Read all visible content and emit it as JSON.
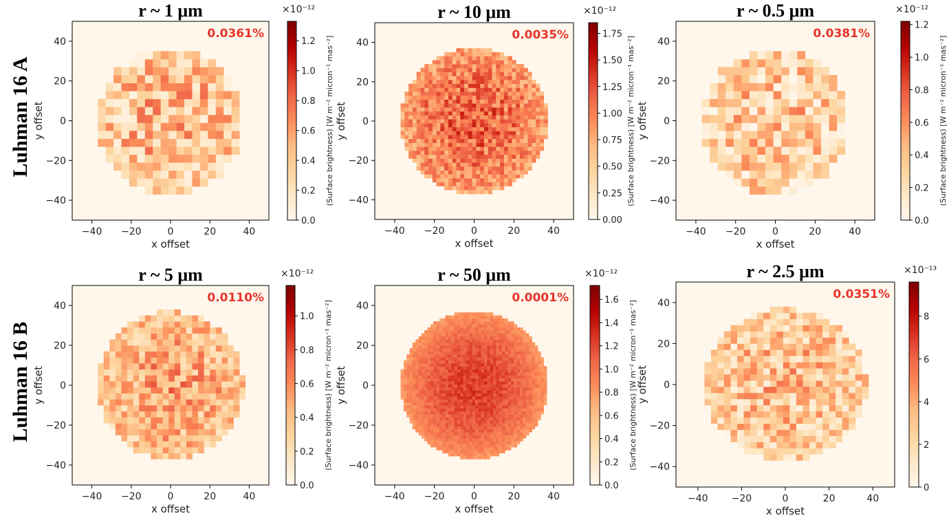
{
  "row_labels": [
    "Luhman 16 A",
    "Luhman 16 B"
  ],
  "chart_data": [
    {
      "type": "heatmap",
      "row_label": "Luhman 16 A",
      "title": "r ~ 1 μm",
      "annotation": "0.0361%",
      "xlabel": "x offset",
      "ylabel": "y offset",
      "cbar_label": "(Surface brightness) [W m⁻² micron⁻¹ mas⁻²]",
      "cbar_exponent": "×10⁻¹²",
      "cbar_ticks": [
        "0.0",
        "0.2",
        "0.4",
        "0.6",
        "0.8",
        "1.0",
        "1.2"
      ],
      "cbar_max": 1.33,
      "xlim": [
        -50,
        50
      ],
      "ylim": [
        -50,
        50
      ],
      "x_ticks": [
        "−40",
        "−20",
        "0",
        "20",
        "40"
      ],
      "y_ticks": [
        "40",
        "20",
        "0",
        "−20",
        "−40"
      ],
      "disk_radius": 37,
      "mean_level": 0.35,
      "spread": 0.3,
      "cell": 4,
      "limb": 0.25
    },
    {
      "type": "heatmap",
      "row_label": "Luhman 16 A",
      "title": "r ~ 10 μm",
      "annotation": "0.0035%",
      "xlabel": "x offset",
      "ylabel": "y offset",
      "cbar_label": "(Surface brightness) [W m⁻² micron⁻¹ mas⁻²]",
      "cbar_exponent": "×10⁻¹²",
      "cbar_ticks": [
        "0.00",
        "0.25",
        "0.50",
        "0.75",
        "1.00",
        "1.25",
        "1.50",
        "1.75"
      ],
      "cbar_max": 1.85,
      "xlim": [
        -50,
        50
      ],
      "ylim": [
        -50,
        50
      ],
      "x_ticks": [
        "−40",
        "−20",
        "0",
        "20",
        "40"
      ],
      "y_ticks": [
        "40",
        "20",
        "0",
        "−20",
        "−40"
      ],
      "disk_radius": 37,
      "mean_level": 0.62,
      "spread": 0.2,
      "cell": 2,
      "limb": 0.3
    },
    {
      "type": "heatmap",
      "row_label": "Luhman 16 A",
      "title": "r ~ 0.5 μm",
      "annotation": "0.0381%",
      "xlabel": "x offset",
      "ylabel": "y offset",
      "cbar_label": "(Surface brightness) [W m⁻² micron⁻¹ mas⁻²]",
      "cbar_exponent": "×10⁻¹²",
      "cbar_ticks": [
        "0.0",
        "0.2",
        "0.4",
        "0.6",
        "0.8",
        "1.0",
        "1.2"
      ],
      "cbar_max": 1.22,
      "xlim": [
        -50,
        50
      ],
      "ylim": [
        -50,
        50
      ],
      "x_ticks": [
        "−40",
        "−20",
        "0",
        "20",
        "40"
      ],
      "y_ticks": [
        "40",
        "20",
        "0",
        "−20",
        "−40"
      ],
      "disk_radius": 37,
      "mean_level": 0.3,
      "spread": 0.3,
      "cell": 4,
      "limb": 0.25
    },
    {
      "type": "heatmap",
      "row_label": "Luhman 16 B",
      "title": "r ~ 5 μm",
      "annotation": "0.0110%",
      "xlabel": "x offset",
      "ylabel": "y offset",
      "cbar_label": "(Surface brightness) [W m⁻² micron⁻¹ mas⁻²]",
      "cbar_exponent": "×10⁻¹²",
      "cbar_ticks": [
        "0.0",
        "0.2",
        "0.4",
        "0.6",
        "0.8",
        "1.0"
      ],
      "cbar_max": 1.18,
      "xlim": [
        -50,
        50
      ],
      "ylim": [
        -50,
        50
      ],
      "x_ticks": [
        "−40",
        "−20",
        "0",
        "20",
        "40"
      ],
      "y_ticks": [
        "40",
        "20",
        "0",
        "−20",
        "−40"
      ],
      "disk_radius": 37,
      "mean_level": 0.42,
      "spread": 0.26,
      "cell": 3,
      "limb": 0.3
    },
    {
      "type": "heatmap",
      "row_label": "Luhman 16 B",
      "title": "r ~ 50 μm",
      "annotation": "0.0001%",
      "xlabel": "x offset",
      "ylabel": "y offset",
      "cbar_label": "(Surface brightness) [W m⁻² micron⁻¹ mas⁻²]",
      "cbar_exponent": "×10⁻¹²",
      "cbar_ticks": [
        "0.0",
        "0.2",
        "0.4",
        "0.6",
        "0.8",
        "1.0",
        "1.2",
        "1.4",
        "1.6"
      ],
      "cbar_max": 1.72,
      "xlim": [
        -50,
        50
      ],
      "ylim": [
        -50,
        50
      ],
      "x_ticks": [
        "−40",
        "−20",
        "0",
        "20",
        "40"
      ],
      "y_ticks": [
        "40",
        "20",
        "0",
        "−20",
        "−40"
      ],
      "disk_radius": 37,
      "mean_level": 0.72,
      "spread": 0.07,
      "cell": 1.5,
      "limb": 0.35
    },
    {
      "type": "heatmap",
      "row_label": "Luhman 16 B",
      "title": "r ~ 2.5 μm",
      "annotation": "0.0351%",
      "xlabel": "x offset",
      "ylabel": "y offset",
      "cbar_label": "(Surface brightness) [W m⁻² micron⁻¹ mas⁻²]",
      "cbar_exponent": "×10⁻¹³",
      "cbar_ticks": [
        "0",
        "2",
        "4",
        "6",
        "8"
      ],
      "cbar_max": 9.6,
      "xlim": [
        -50,
        50
      ],
      "ylim": [
        -50,
        50
      ],
      "x_ticks": [
        "−40",
        "−20",
        "0",
        "20",
        "40"
      ],
      "y_ticks": [
        "40",
        "20",
        "0",
        "−20",
        "−40"
      ],
      "disk_radius": 37,
      "mean_level": 0.33,
      "spread": 0.28,
      "cell": 3,
      "limb": 0.25
    }
  ]
}
